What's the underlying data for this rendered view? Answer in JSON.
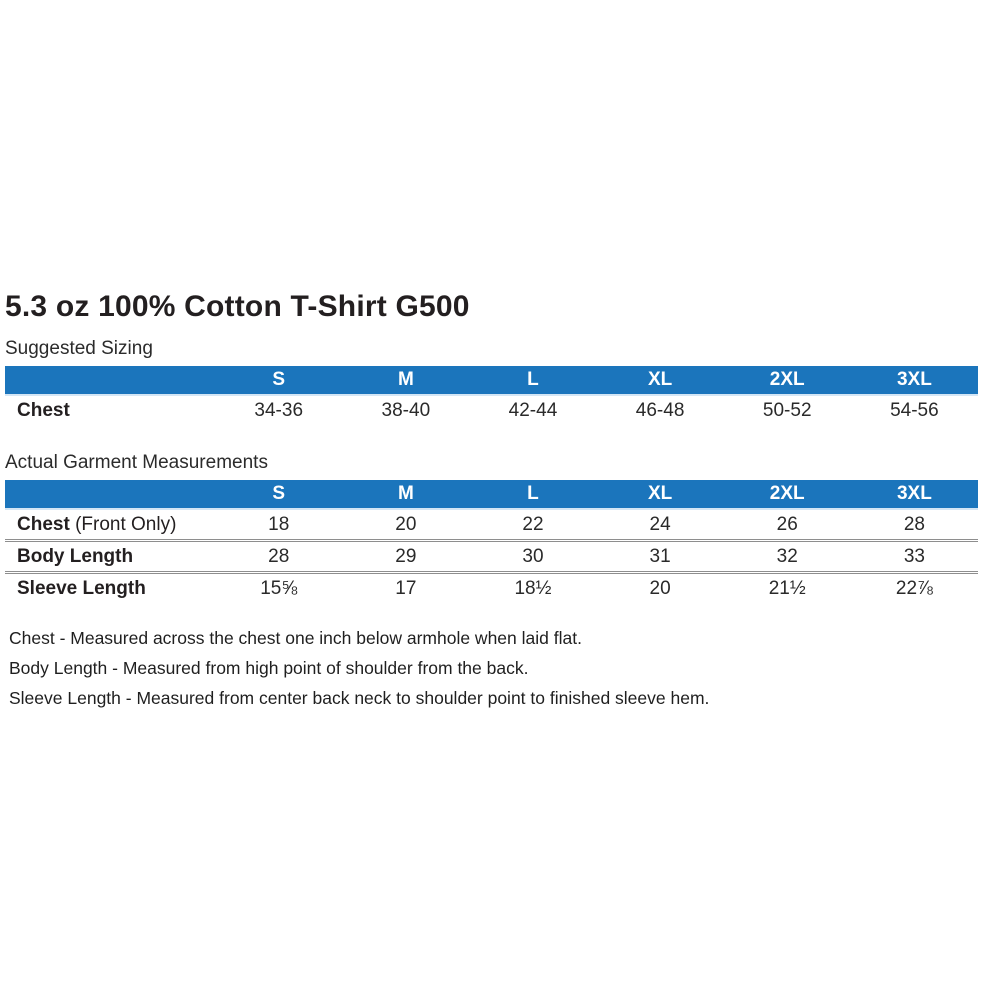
{
  "page": {
    "title": "5.3 oz 100% Cotton T-Shirt G500"
  },
  "suggested_sizing": {
    "section_label": "Suggested Sizing",
    "columns": [
      "S",
      "M",
      "L",
      "XL",
      "2XL",
      "3XL"
    ],
    "rows": [
      {
        "label": "Chest",
        "label_suffix": "",
        "values": [
          "34-36",
          "38-40",
          "42-44",
          "46-48",
          "50-52",
          "54-56"
        ]
      }
    ]
  },
  "garment_measurements": {
    "section_label": "Actual Garment Measurements",
    "columns": [
      "S",
      "M",
      "L",
      "XL",
      "2XL",
      "3XL"
    ],
    "rows": [
      {
        "label": "Chest",
        "label_suffix": " (Front Only)",
        "values": [
          "18",
          "20",
          "22",
          "24",
          "26",
          "28"
        ]
      },
      {
        "label": "Body Length",
        "label_suffix": "",
        "values": [
          "28",
          "29",
          "30",
          "31",
          "32",
          "33"
        ]
      },
      {
        "label": "Sleeve Length",
        "label_suffix": "",
        "values": [
          "15⅝",
          "17",
          "18½",
          "20",
          "21½",
          "22⅞"
        ]
      }
    ]
  },
  "footnotes": [
    "Chest - Measured across the chest one inch below armhole when laid flat.",
    "Body Length - Measured from high point of shoulder from the back.",
    "Sleeve Length - Measured from center back neck to shoulder point to finished sleeve hem."
  ],
  "colors": {
    "header_bg": "#1b75bc",
    "header_text": "#ffffff",
    "body_text": "#231f20",
    "row_divider": "#8e8e8e",
    "page_bg": "#ffffff"
  }
}
